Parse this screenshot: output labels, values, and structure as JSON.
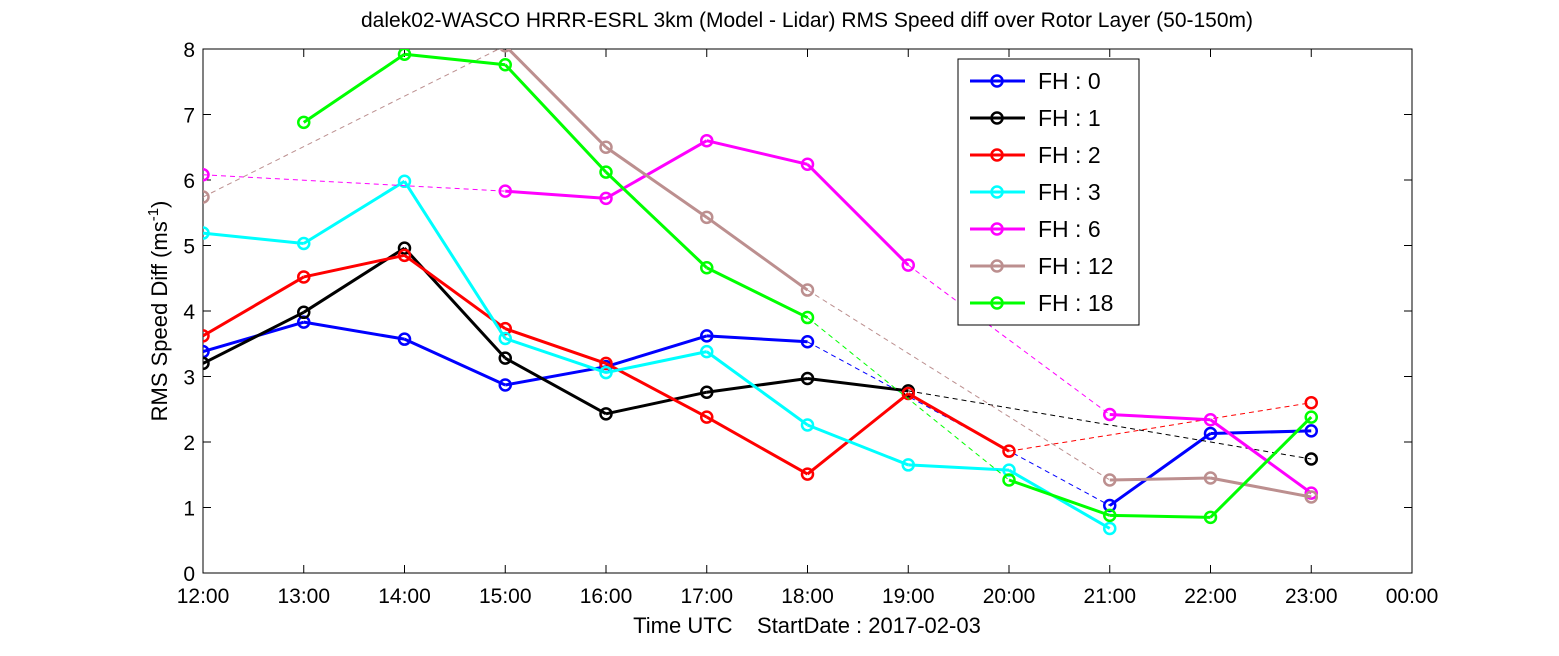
{
  "chart_data": {
    "type": "line",
    "title": "dalek02-WASCO HRRR-ESRL 3km (Model - Lidar) RMS Speed diff over Rotor Layer (50-150m)",
    "xlabel": "Time UTC    StartDate : 2017-02-03",
    "ylabel_main": "RMS Speed Diff (ms",
    "ylabel_sup": "-1",
    "ylabel_close": ")",
    "x_tick_labels": [
      "12:00",
      "13:00",
      "14:00",
      "15:00",
      "16:00",
      "17:00",
      "18:00",
      "19:00",
      "20:00",
      "21:00",
      "22:00",
      "23:00",
      "00:00"
    ],
    "y_ticks": [
      0,
      1,
      2,
      3,
      4,
      5,
      6,
      7,
      8
    ],
    "xlim": [
      12,
      24
    ],
    "ylim": [
      0,
      8
    ],
    "grid": false,
    "legend_placement": "top-right inside",
    "series": [
      {
        "name": "FH : 0",
        "color": "#0000ff",
        "x": [
          12,
          13,
          14,
          15,
          16,
          17,
          18,
          21,
          22,
          23
        ],
        "y": [
          3.38,
          3.83,
          3.57,
          2.87,
          3.15,
          3.62,
          3.53,
          1.03,
          2.13,
          2.17
        ]
      },
      {
        "name": "FH : 1",
        "color": "#000000",
        "x": [
          12,
          13,
          14,
          15,
          16,
          17,
          18,
          19,
          23
        ],
        "y": [
          3.2,
          3.98,
          4.96,
          3.28,
          2.43,
          2.76,
          2.97,
          2.78,
          1.74
        ]
      },
      {
        "name": "FH : 2",
        "color": "#ff0000",
        "x": [
          12,
          13,
          14,
          15,
          16,
          17,
          18,
          19,
          20,
          23
        ],
        "y": [
          3.62,
          4.52,
          4.85,
          3.73,
          3.2,
          2.38,
          1.51,
          2.74,
          1.86,
          2.6
        ]
      },
      {
        "name": "FH : 3",
        "color": "#00ffff",
        "x": [
          12,
          13,
          14,
          15,
          16,
          17,
          18,
          19,
          20,
          21
        ],
        "y": [
          5.19,
          5.03,
          5.98,
          3.58,
          3.06,
          3.38,
          2.26,
          1.65,
          1.57,
          0.68
        ]
      },
      {
        "name": "FH : 6",
        "color": "#ff00ff",
        "x": [
          12,
          15,
          16,
          17,
          18,
          19,
          21,
          22,
          23
        ],
        "y": [
          6.08,
          5.83,
          5.72,
          6.6,
          6.24,
          4.7,
          2.42,
          2.34,
          1.22
        ]
      },
      {
        "name": "FH : 12",
        "color": "#bc8f8f",
        "x": [
          12,
          15,
          16,
          17,
          18,
          21,
          22,
          23
        ],
        "y": [
          5.74,
          8.05,
          6.5,
          5.43,
          4.32,
          1.42,
          1.45,
          1.16
        ]
      },
      {
        "name": "FH : 18",
        "color": "#00ff00",
        "x": [
          13,
          14,
          15,
          16,
          17,
          18,
          20,
          21,
          22,
          23
        ],
        "y": [
          6.88,
          7.92,
          7.76,
          6.12,
          4.66,
          3.9,
          1.42,
          0.88,
          0.85,
          2.38
        ]
      }
    ]
  }
}
